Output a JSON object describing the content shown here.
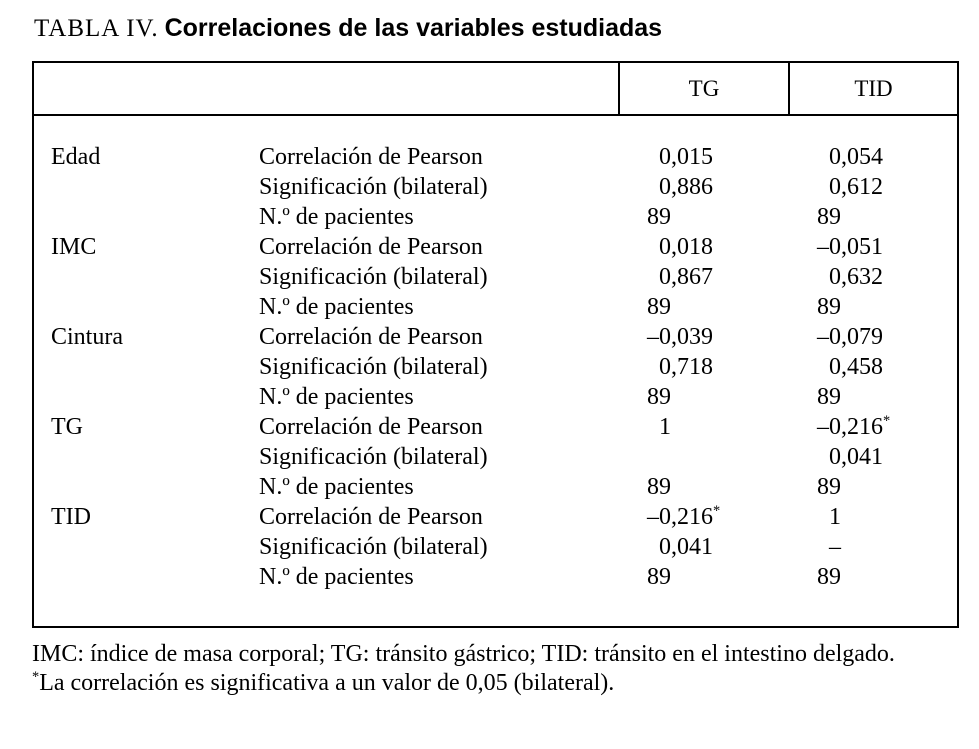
{
  "title": {
    "prefix": "TABLA IV.",
    "main": "Correlaciones de las variables estudiadas"
  },
  "table": {
    "col_headers": [
      "TG",
      "TID"
    ],
    "groups": [
      {
        "variable": "Edad",
        "rows": [
          {
            "label": "Correlación de Pearson",
            "tg": "0,015",
            "tid": "0,054"
          },
          {
            "label": "Significación (bilateral)",
            "tg": "0,886",
            "tid": "0,612"
          },
          {
            "label": "N.º de pacientes",
            "tg": "89",
            "tid": "89"
          }
        ]
      },
      {
        "variable": "IMC",
        "rows": [
          {
            "label": "Correlación de Pearson",
            "tg": "0,018",
            "tid": "–0,051"
          },
          {
            "label": "Significación (bilateral)",
            "tg": "0,867",
            "tid": "0,632"
          },
          {
            "label": "N.º de pacientes",
            "tg": "89",
            "tid": "89"
          }
        ]
      },
      {
        "variable": "Cintura",
        "rows": [
          {
            "label": "Correlación de Pearson",
            "tg": "–0,039",
            "tid": "–0,079"
          },
          {
            "label": "Significación (bilateral)",
            "tg": "0,718",
            "tid": "0,458"
          },
          {
            "label": "N.º de pacientes",
            "tg": "89",
            "tid": "89"
          }
        ]
      },
      {
        "variable": "TG",
        "rows": [
          {
            "label": "Correlación de Pearson",
            "tg": "1",
            "tid": "–0,216*"
          },
          {
            "label": "Significación (bilateral)",
            "tg": "",
            "tid": "0,041"
          },
          {
            "label": "N.º de pacientes",
            "tg": "89",
            "tid": "89"
          }
        ]
      },
      {
        "variable": "TID",
        "rows": [
          {
            "label": "Correlación de Pearson",
            "tg": "–0,216*",
            "tid": "1"
          },
          {
            "label": "Significación (bilateral)",
            "tg": "0,041",
            "tid": "–"
          },
          {
            "label": "N.º de pacientes",
            "tg": "89",
            "tid": "89"
          }
        ]
      }
    ]
  },
  "footnotes": {
    "abbreviations": "IMC: índice de masa corporal; TG: tránsito gástrico; TID: tránsito en el intestino delgado.",
    "significance_marker": "*",
    "significance": "La correlación es significativa a un valor de 0,05 (bilateral)."
  }
}
